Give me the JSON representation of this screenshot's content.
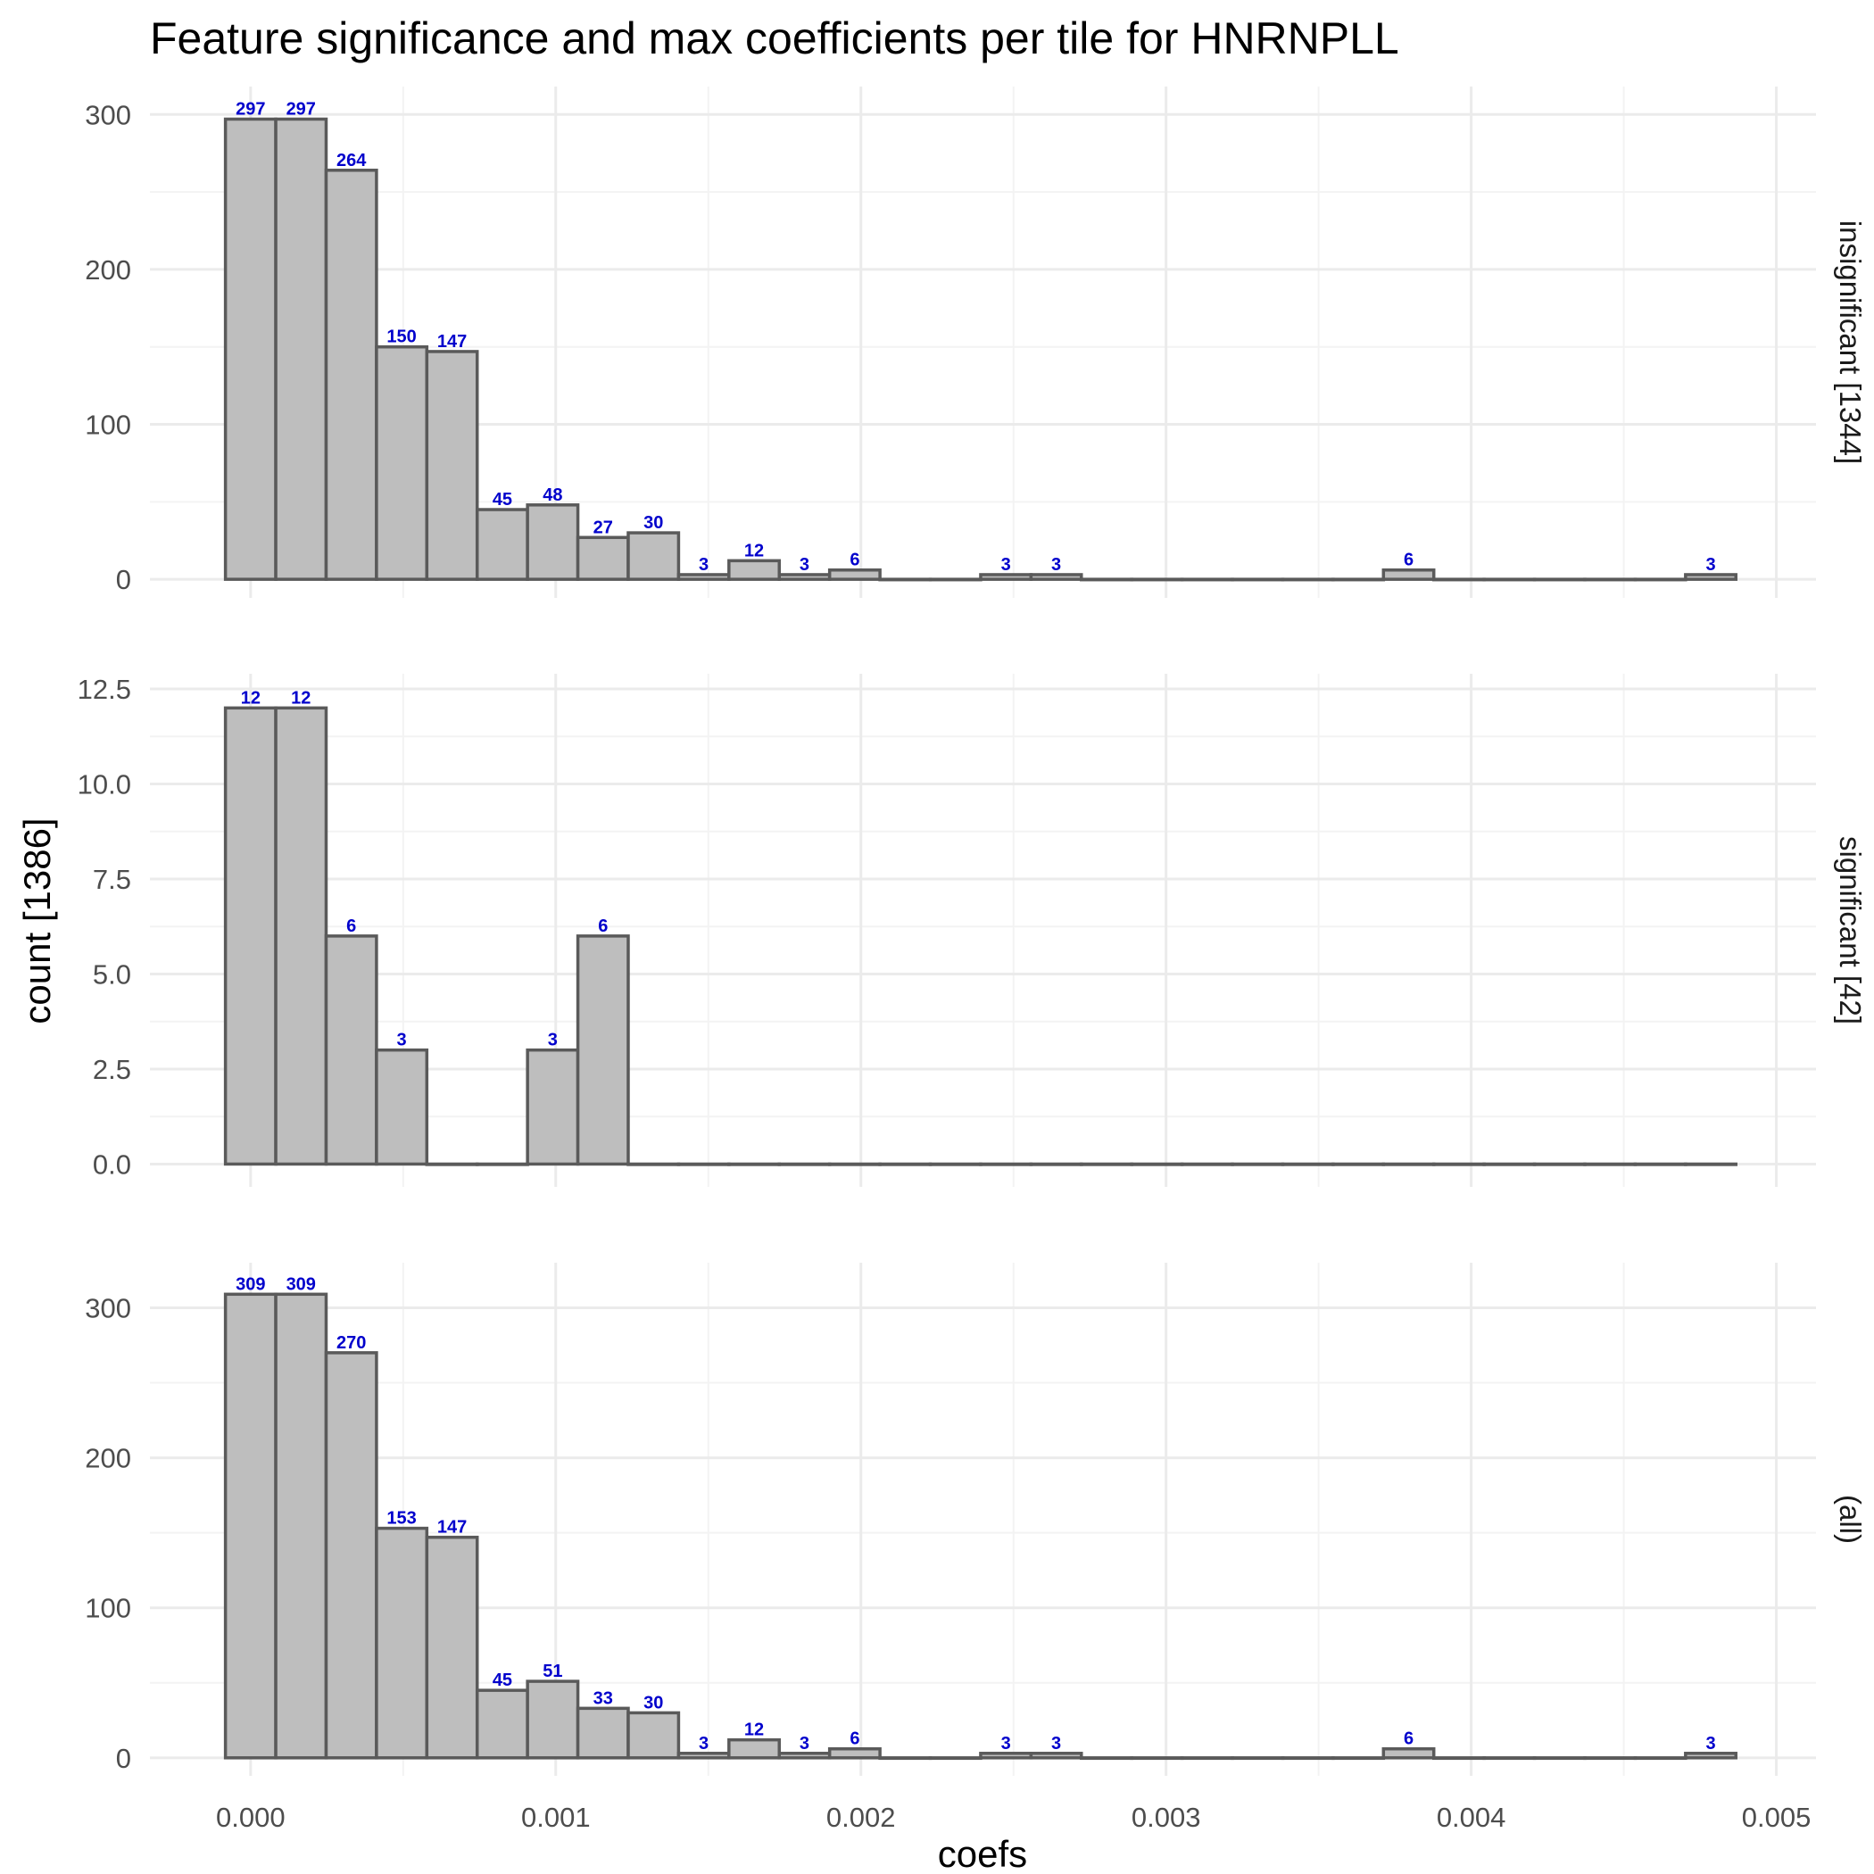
{
  "chart_data": {
    "type": "bar",
    "title": "Feature significance and max coefficients per tile for HNRNPLL",
    "xlabel": "coefs",
    "ylabel": "count [1386]",
    "xlim": [
      -0.00033,
      0.00513
    ],
    "x_ticks": [
      0.0,
      0.001,
      0.002,
      0.003,
      0.004,
      0.005
    ],
    "x_tick_labels": [
      "0.000",
      "0.001",
      "0.002",
      "0.003",
      "0.004",
      "0.005"
    ],
    "bin_width": 0.000165,
    "bin_starts": [
      -8.25e-05,
      8.25e-05,
      0.0002475,
      0.0004125,
      0.0005775,
      0.0007425,
      0.0009075,
      0.0010725,
      0.0012375,
      0.0014025,
      0.0015675,
      0.0017325,
      0.0018975,
      0.0020625,
      0.0022275,
      0.0023925,
      0.0025575,
      0.0027225,
      0.0028875,
      0.0030525,
      0.0032175,
      0.0033825,
      0.0035475,
      0.0037125,
      0.0038775,
      0.0040425,
      0.0042075,
      0.0043725,
      0.0045375,
      0.0047025
    ],
    "grid": true,
    "panels": [
      {
        "strip": "insignificant [1344]",
        "ylim": [
          -12,
          318
        ],
        "y_ticks": [
          0,
          100,
          200,
          300
        ],
        "y_tick_labels": [
          "0",
          "100",
          "200",
          "300"
        ],
        "values": [
          297,
          297,
          264,
          150,
          147,
          45,
          48,
          27,
          30,
          3,
          12,
          3,
          6,
          0,
          0,
          3,
          3,
          0,
          0,
          0,
          0,
          0,
          0,
          6,
          0,
          0,
          0,
          0,
          0,
          3
        ]
      },
      {
        "strip": "significant [42]",
        "ylim": [
          -0.6,
          12.9
        ],
        "y_ticks": [
          0,
          2.5,
          5,
          7.5,
          10,
          12.5
        ],
        "y_tick_labels": [
          "0.0",
          "2.5",
          "5.0",
          "7.5",
          "10.0",
          "12.5"
        ],
        "values": [
          12,
          12,
          6,
          3,
          0,
          0,
          3,
          6,
          0,
          0,
          0,
          0,
          0,
          0,
          0,
          0,
          0,
          0,
          0,
          0,
          0,
          0,
          0,
          0,
          0,
          0,
          0,
          0,
          0,
          0
        ]
      },
      {
        "strip": "(all)",
        "ylim": [
          -12,
          330
        ],
        "y_ticks": [
          0,
          100,
          200,
          300
        ],
        "y_tick_labels": [
          "0",
          "100",
          "200",
          "300"
        ],
        "values": [
          309,
          309,
          270,
          153,
          147,
          45,
          51,
          33,
          30,
          3,
          12,
          3,
          6,
          0,
          0,
          3,
          3,
          0,
          0,
          0,
          0,
          0,
          0,
          6,
          0,
          0,
          0,
          0,
          0,
          3
        ]
      }
    ],
    "bar_fill": "#bebebe",
    "bar_stroke": "#5a5a5a",
    "label_color": "#0000cc"
  }
}
